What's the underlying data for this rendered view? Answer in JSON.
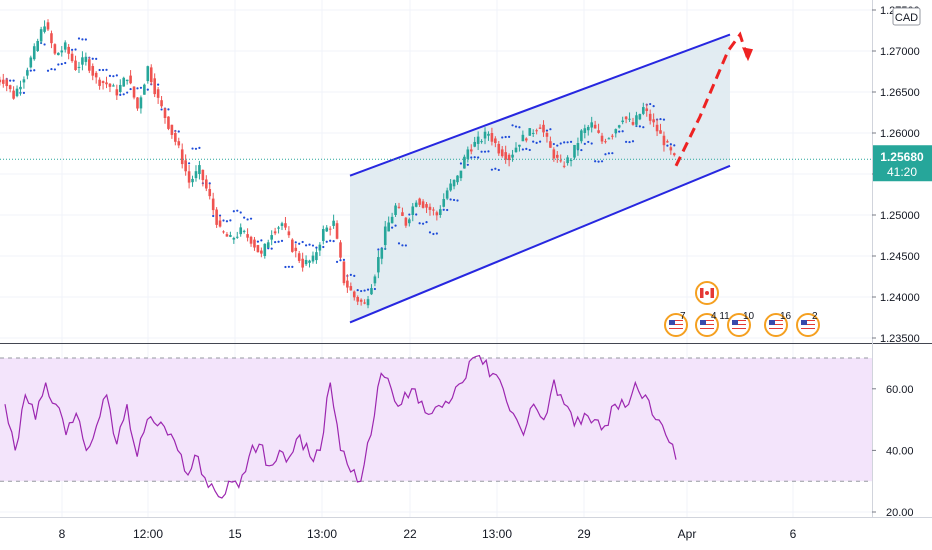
{
  "chart_data": [
    {
      "type": "candlestick",
      "symbol_label": "CAD",
      "ylim": [
        1.235,
        1.275
      ],
      "y_ticks": [
        "1.27500",
        "1.27000",
        "1.26500",
        "1.26000",
        "1.25500",
        "1.25000",
        "1.24500",
        "1.24000",
        "1.23500"
      ],
      "x_ticks": [
        "8",
        "12:00",
        "15",
        "13:00",
        "22",
        "13:00",
        "29",
        "Apr",
        "6"
      ],
      "last_price": "1.25680",
      "countdown": "41:20",
      "price_path": [
        1.2665,
        1.2645,
        1.267,
        1.27,
        1.2735,
        1.2695,
        1.2705,
        1.268,
        1.269,
        1.2665,
        1.266,
        1.265,
        1.267,
        1.263,
        1.268,
        1.264,
        1.261,
        1.258,
        1.254,
        1.2555,
        1.252,
        1.248,
        1.247,
        1.248,
        1.247,
        1.245,
        1.248,
        1.249,
        1.246,
        1.244,
        1.2445,
        1.248,
        1.249,
        1.242,
        1.24,
        1.239,
        1.243,
        1.248,
        1.251,
        1.249,
        1.252,
        1.251,
        1.25,
        1.253,
        1.2545,
        1.258,
        1.259,
        1.26,
        1.258,
        1.257,
        1.259,
        1.26,
        1.261,
        1.258,
        1.256,
        1.257,
        1.26,
        1.261,
        1.259,
        1.26,
        1.262,
        1.261,
        1.263,
        1.261,
        1.259,
        1.2568
      ],
      "parabolic_sar_color": "#1e4bd8",
      "channel": {
        "upper": {
          "from": 1.2548,
          "to": 1.272
        },
        "lower": {
          "from": 1.2369,
          "to": 1.256
        },
        "line_color": "#2727e0",
        "fill_color": "#dde9f0"
      },
      "projection": {
        "points": [
          1.256,
          1.262,
          1.27,
          1.272,
          1.269
        ],
        "color": "#ee2222"
      },
      "events": [
        {
          "flag": "US",
          "label": "7"
        },
        {
          "flag": "US",
          "label": "4 11"
        },
        {
          "flag": "CA",
          "label": ""
        },
        {
          "flag": "US",
          "label": "10"
        },
        {
          "flag": "US",
          "label": "16"
        },
        {
          "flag": "US",
          "label": "2"
        }
      ],
      "up_color": "#26a69a",
      "down_color": "#ef5350"
    },
    {
      "type": "line",
      "indicator": "RSI",
      "ylim": [
        20,
        70
      ],
      "y_ticks": [
        "60.00",
        "40.00",
        "20.00"
      ],
      "band": [
        30,
        70
      ],
      "values": [
        55,
        40,
        58,
        50,
        62,
        55,
        45,
        52,
        40,
        48,
        58,
        42,
        55,
        38,
        50,
        48,
        45,
        40,
        32,
        38,
        28,
        25,
        30,
        28,
        38,
        42,
        35,
        40,
        38,
        45,
        38,
        40,
        62,
        40,
        33,
        30,
        45,
        65,
        60,
        55,
        60,
        56,
        52,
        54,
        57,
        62,
        70,
        68,
        65,
        60,
        52,
        45,
        55,
        50,
        63,
        55,
        48,
        52,
        50,
        48,
        55,
        54,
        62,
        58,
        50,
        45,
        37
      ],
      "line_color": "#9c27b0",
      "band_fill": "#f3e4fb"
    }
  ]
}
